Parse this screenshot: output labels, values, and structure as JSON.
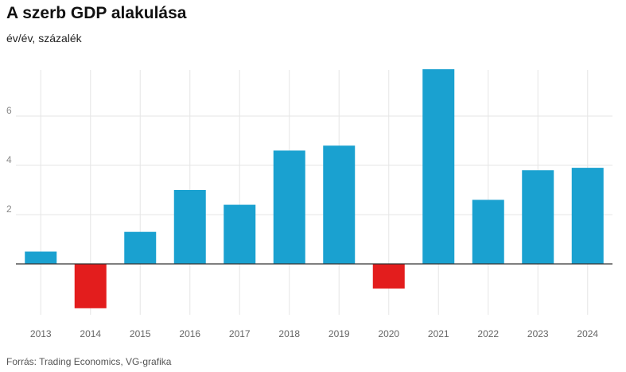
{
  "title": "A szerb GDP alakulása",
  "subtitle": "év/év, százalék",
  "source": "Forrás: Trading Economics, VG-grafika",
  "chart_data": {
    "type": "bar",
    "title": "A szerb GDP alakulása",
    "subtitle": "év/év, százalék",
    "xlabel": "",
    "ylabel": "",
    "categories": [
      "2013",
      "2014",
      "2015",
      "2016",
      "2017",
      "2018",
      "2019",
      "2020",
      "2021",
      "2022",
      "2023",
      "2024"
    ],
    "values": [
      0.5,
      -1.8,
      1.3,
      3.0,
      2.4,
      4.6,
      4.8,
      -1.0,
      7.9,
      2.6,
      3.8,
      3.9
    ],
    "ylim": [
      -2.3,
      7.9
    ],
    "yticks": [
      2,
      4,
      6
    ],
    "grid": true,
    "legend": "none",
    "colors": {
      "positive": "#1aa1d0",
      "negative": "#e31d1d",
      "grid": "#e6e6e6",
      "axis": "#333333",
      "tick_label": "#8a8a8a"
    }
  }
}
